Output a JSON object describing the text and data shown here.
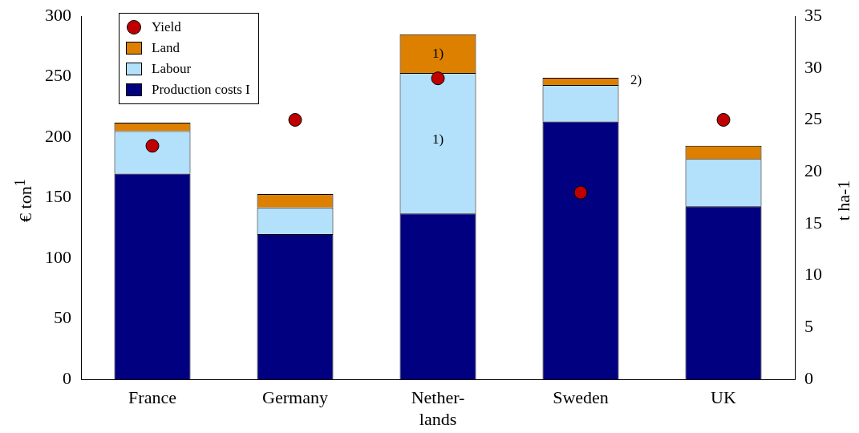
{
  "chart_data": {
    "type": "bar",
    "stacked": true,
    "ylabel": "€ ton$^{1}$",
    "y2label": "t ha-1",
    "categories": [
      "France",
      "Germany",
      "Nether-\nlands",
      "Sweden",
      "UK"
    ],
    "series": [
      {
        "name": "Production costs I",
        "color": "#000080",
        "values": [
          170,
          120,
          137,
          213,
          143
        ]
      },
      {
        "name": "Labour",
        "color": "#b3e0fa",
        "values": [
          35,
          22,
          116,
          30,
          39
        ]
      },
      {
        "name": "Land",
        "color": "#dd8000",
        "values": [
          7,
          11,
          32,
          6,
          11
        ]
      },
      {
        "name": "Yield",
        "type": "scatter",
        "axis": "y2",
        "color": "#c00000",
        "values": [
          22.5,
          25,
          29,
          18,
          25
        ]
      }
    ],
    "ylim": [
      0,
      300
    ],
    "yticks": [
      0,
      50,
      100,
      150,
      200,
      250,
      300
    ],
    "y2lim": [
      0,
      35
    ],
    "y2ticks": [
      0,
      5,
      10,
      15,
      20,
      25,
      30,
      35
    ],
    "grid": false,
    "legend": "top left",
    "marker": "circle",
    "annotations": [
      "1)",
      "1)",
      "2)"
    ]
  }
}
